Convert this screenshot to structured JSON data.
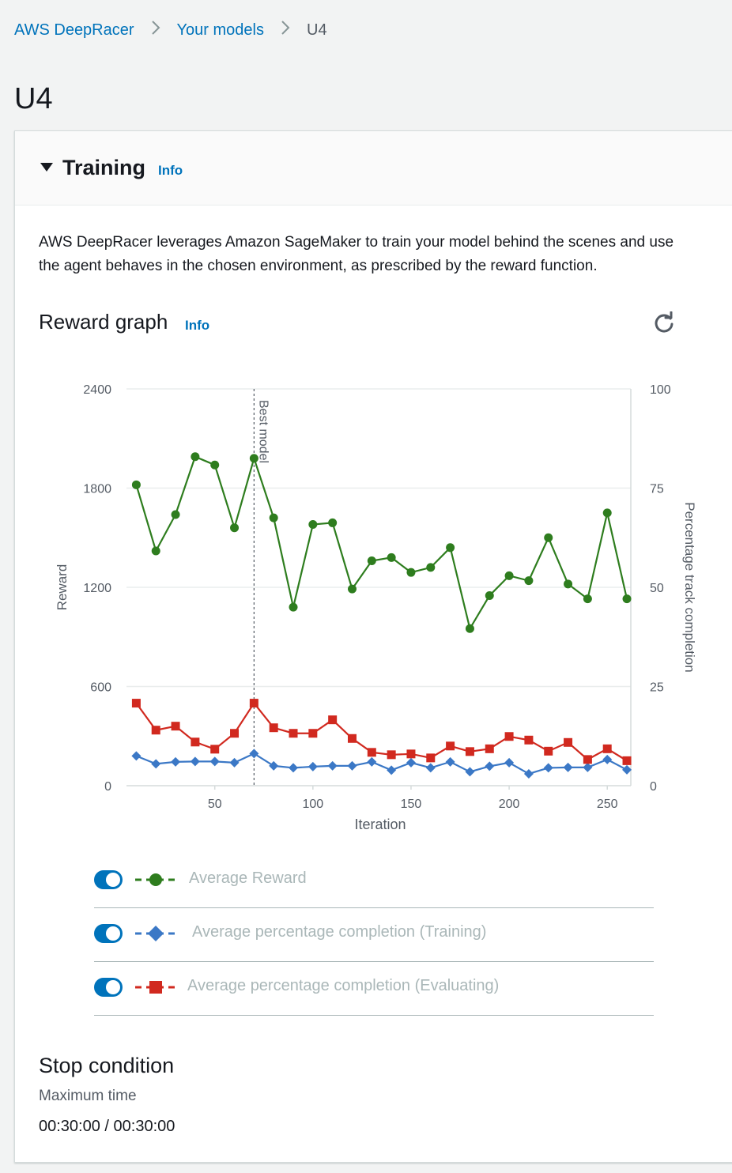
{
  "breadcrumb": {
    "items": [
      "AWS DeepRacer",
      "Your models",
      "U4"
    ]
  },
  "page": {
    "title": "U4"
  },
  "training": {
    "title": "Training",
    "info": "Info",
    "description_line1": "AWS DeepRacer leverages Amazon SageMaker to train your model behind the scenes and use",
    "description_line2": "the agent behaves in the chosen environment, as prescribed by the reward function."
  },
  "reward_graph": {
    "title": "Reward graph",
    "info": "Info",
    "refresh_icon": "refresh-icon"
  },
  "chart_data": {
    "type": "line",
    "xlabel": "Iteration",
    "ylabel": "Reward",
    "y2label": "Percentage track completion",
    "xlim": [
      5,
      262
    ],
    "ylim": [
      0,
      2400
    ],
    "y2lim": [
      0,
      100
    ],
    "x_ticks": [
      50,
      100,
      150,
      200,
      250
    ],
    "y_ticks": [
      0,
      600,
      1200,
      1800,
      2400
    ],
    "y2_ticks": [
      0,
      25,
      50,
      75,
      100
    ],
    "grid": true,
    "annotation": {
      "label": "Best model",
      "x": 70
    },
    "x": [
      10,
      20,
      30,
      40,
      50,
      60,
      70,
      80,
      90,
      100,
      110,
      120,
      130,
      140,
      150,
      160,
      170,
      180,
      190,
      200,
      210,
      220,
      230,
      240,
      250,
      260
    ],
    "series": [
      {
        "name": "Average Reward",
        "axis": "left",
        "color": "#2e7d1e",
        "marker": "circle",
        "values": [
          1820,
          1420,
          1640,
          1990,
          1940,
          1560,
          1980,
          1620,
          1080,
          1580,
          1590,
          1190,
          1360,
          1380,
          1290,
          1320,
          1440,
          950,
          1150,
          1270,
          1240,
          1500,
          1220,
          1130,
          1650,
          1130
        ]
      },
      {
        "name": "Average percentage completion (Training)",
        "axis": "right",
        "color": "#3b78c6",
        "marker": "diamond",
        "values": [
          7.5,
          5.5,
          6.0,
          6.1,
          6.1,
          5.8,
          8.1,
          5.0,
          4.5,
          4.8,
          5.0,
          5.0,
          6.0,
          3.9,
          5.8,
          4.5,
          6.0,
          3.5,
          4.9,
          5.8,
          3.0,
          4.5,
          4.6,
          4.6,
          6.6,
          4.0
        ]
      },
      {
        "name": "Average percentage completion (Evaluating)",
        "axis": "right",
        "color": "#d1291f",
        "marker": "square",
        "values": [
          20.8,
          14.0,
          15.0,
          11.0,
          9.2,
          13.2,
          20.8,
          14.6,
          13.2,
          13.2,
          16.6,
          11.9,
          8.4,
          7.8,
          8.0,
          7.0,
          10.0,
          8.6,
          9.3,
          12.4,
          11.5,
          8.7,
          10.9,
          6.6,
          9.3,
          6.3
        ]
      }
    ]
  },
  "stop_condition": {
    "title": "Stop condition",
    "label": "Maximum time",
    "value": "00:30:00 / 00:30:00"
  }
}
